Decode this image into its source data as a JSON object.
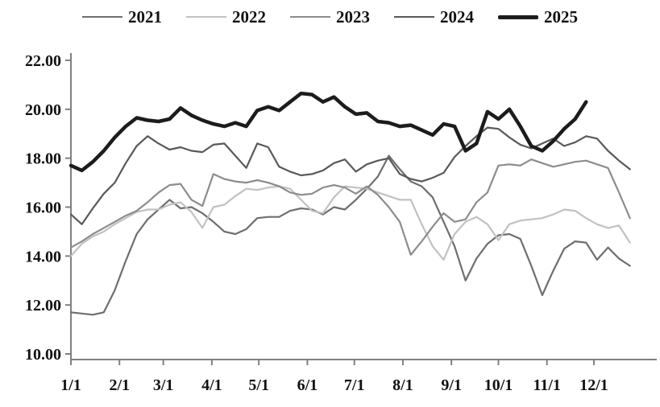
{
  "legend": {
    "items": [
      "2021",
      "2022",
      "2023",
      "2024",
      "2025"
    ]
  },
  "chart_data": {
    "type": "line",
    "title": "",
    "xlabel": "",
    "ylabel": "",
    "grid": false,
    "legend_position": "top",
    "x_axis": {
      "tick_labels": [
        "1/1",
        "2/1",
        "3/1",
        "4/1",
        "5/1",
        "6/1",
        "7/1",
        "8/1",
        "9/1",
        "10/1",
        "11/1",
        "12/1"
      ],
      "unit": "month/day, weekly data points across one year"
    },
    "y_axis": {
      "tick_labels": [
        "22.00",
        "20.00",
        "18.00",
        "16.00",
        "14.00",
        "12.00",
        "10.00"
      ],
      "min": 10,
      "max": 22,
      "step": 2
    },
    "axis_color": "#808080",
    "series": [
      {
        "name": "2021",
        "color": "#6e6e6e",
        "width": 2.2,
        "values": [
          11.7,
          11.65,
          11.6,
          11.7,
          12.6,
          13.8,
          14.9,
          15.5,
          15.9,
          16.3,
          15.95,
          16.0,
          15.75,
          15.4,
          15.0,
          14.9,
          15.1,
          15.55,
          15.6,
          15.6,
          15.85,
          15.95,
          15.9,
          15.7,
          16.0,
          15.9,
          16.3,
          16.75,
          17.25,
          18.1,
          17.55,
          17.05,
          16.85,
          16.4,
          15.4,
          14.4,
          13.0,
          13.9,
          14.5,
          14.85,
          14.9,
          14.7,
          13.6,
          12.4,
          13.4,
          14.3,
          14.6,
          14.55,
          13.85,
          14.35,
          13.9,
          13.6
        ]
      },
      {
        "name": "2022",
        "color": "#c1c1c1",
        "width": 2.2,
        "values": [
          14.0,
          14.5,
          14.8,
          15.0,
          15.3,
          15.55,
          15.8,
          15.9,
          15.9,
          16.1,
          16.2,
          15.8,
          15.15,
          16.0,
          16.1,
          16.45,
          16.75,
          16.7,
          16.8,
          16.85,
          16.75,
          16.3,
          15.85,
          15.75,
          16.4,
          16.85,
          16.8,
          16.75,
          16.6,
          16.45,
          16.3,
          16.3,
          15.3,
          14.4,
          13.85,
          14.9,
          15.4,
          15.6,
          15.3,
          14.65,
          15.3,
          15.45,
          15.5,
          15.55,
          15.7,
          15.9,
          15.85,
          15.55,
          15.3,
          15.15,
          15.25,
          14.55
        ]
      },
      {
        "name": "2023",
        "color": "#8c8c8c",
        "width": 2.2,
        "values": [
          14.35,
          14.6,
          14.9,
          15.15,
          15.4,
          15.65,
          15.85,
          16.2,
          16.6,
          16.9,
          16.95,
          16.3,
          16.05,
          17.35,
          17.15,
          17.05,
          17.0,
          17.1,
          17.0,
          16.85,
          16.6,
          16.5,
          16.55,
          16.8,
          16.9,
          16.8,
          16.55,
          16.85,
          16.5,
          16.0,
          15.4,
          14.05,
          14.6,
          15.2,
          15.75,
          15.4,
          15.5,
          16.2,
          16.6,
          17.7,
          17.75,
          17.7,
          17.95,
          17.8,
          17.65,
          17.75,
          17.85,
          17.9,
          17.75,
          17.6,
          16.6,
          15.55
        ]
      },
      {
        "name": "2024",
        "color": "#595959",
        "width": 2.2,
        "values": [
          15.7,
          15.3,
          15.95,
          16.55,
          17.0,
          17.8,
          18.5,
          18.9,
          18.6,
          18.35,
          18.45,
          18.3,
          18.25,
          18.55,
          18.6,
          18.1,
          17.6,
          18.6,
          18.45,
          17.65,
          17.45,
          17.3,
          17.35,
          17.5,
          17.8,
          17.95,
          17.45,
          17.75,
          17.9,
          18.0,
          17.35,
          17.15,
          17.05,
          17.2,
          17.4,
          18.05,
          18.5,
          18.9,
          19.25,
          19.2,
          18.85,
          18.55,
          18.4,
          18.6,
          18.8,
          18.5,
          18.65,
          18.9,
          18.8,
          18.3,
          17.9,
          17.55
        ]
      },
      {
        "name": "2025",
        "color": "#1c1c1c",
        "width": 4.5,
        "values": [
          17.7,
          17.5,
          17.85,
          18.3,
          18.85,
          19.3,
          19.65,
          19.55,
          19.5,
          19.6,
          20.05,
          19.75,
          19.55,
          19.4,
          19.3,
          19.45,
          19.3,
          19.95,
          20.1,
          19.95,
          20.3,
          20.65,
          20.6,
          20.3,
          20.5,
          20.1,
          19.8,
          19.85,
          19.5,
          19.45,
          19.3,
          19.35,
          19.15,
          18.95,
          19.4,
          19.3,
          18.3,
          18.6,
          19.9,
          19.6,
          20.0,
          19.3,
          18.5,
          18.3,
          18.7,
          19.2,
          19.6,
          20.3
        ]
      }
    ]
  }
}
